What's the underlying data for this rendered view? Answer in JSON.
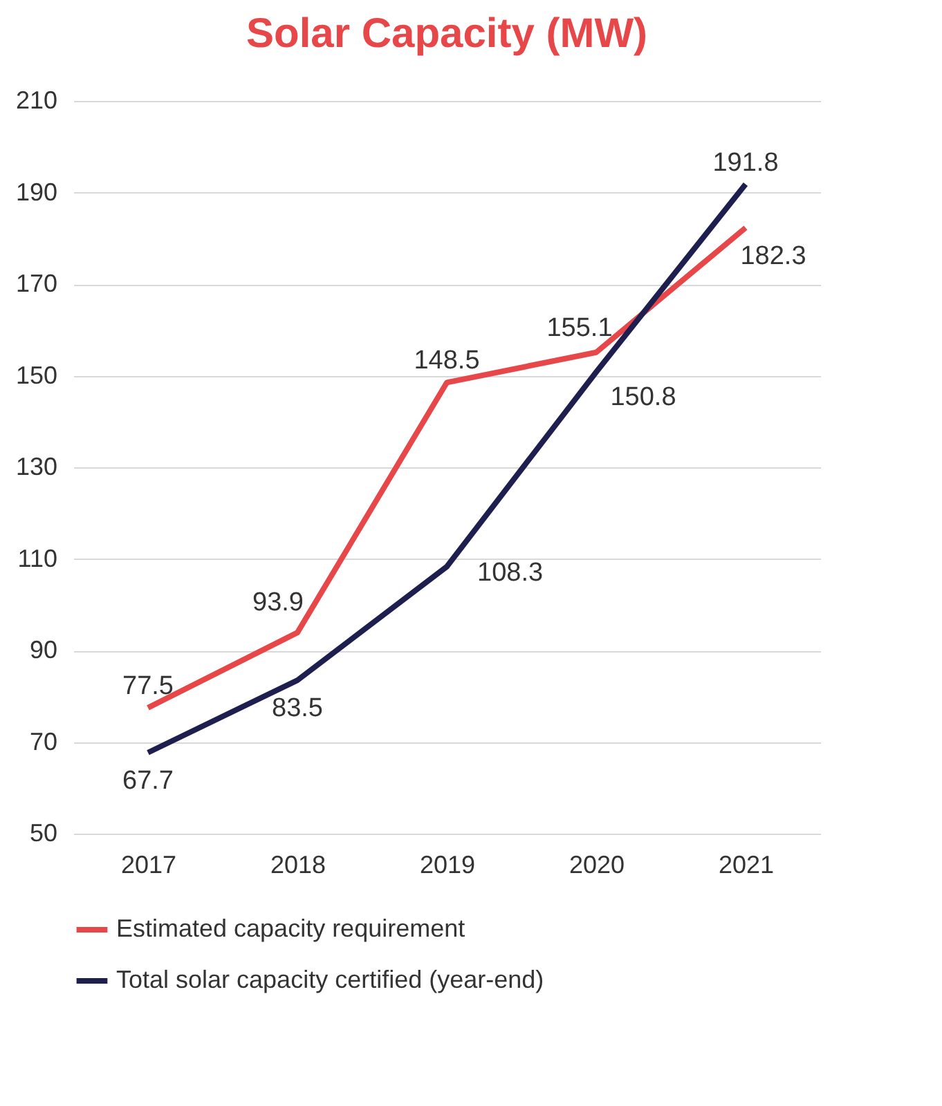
{
  "chart_data": {
    "type": "line",
    "title": "Solar Capacity (MW)",
    "categories": [
      "2017",
      "2018",
      "2019",
      "2020",
      "2021"
    ],
    "series": [
      {
        "name": "Estimated capacity requirement",
        "color": "#e8474a",
        "values": [
          77.5,
          93.9,
          148.5,
          155.1,
          182.3
        ]
      },
      {
        "name": "Total solar capacity certified (year-end)",
        "color": "#1f1f4f",
        "values": [
          67.7,
          83.5,
          108.3,
          150.8,
          191.8
        ]
      }
    ],
    "ylim": [
      50,
      210
    ],
    "yticks": [
      50,
      70,
      90,
      110,
      130,
      150,
      170,
      190,
      210
    ],
    "grid": "y",
    "legend": "bottom",
    "data_labels": true,
    "marker": "none",
    "line_style": "solid"
  }
}
